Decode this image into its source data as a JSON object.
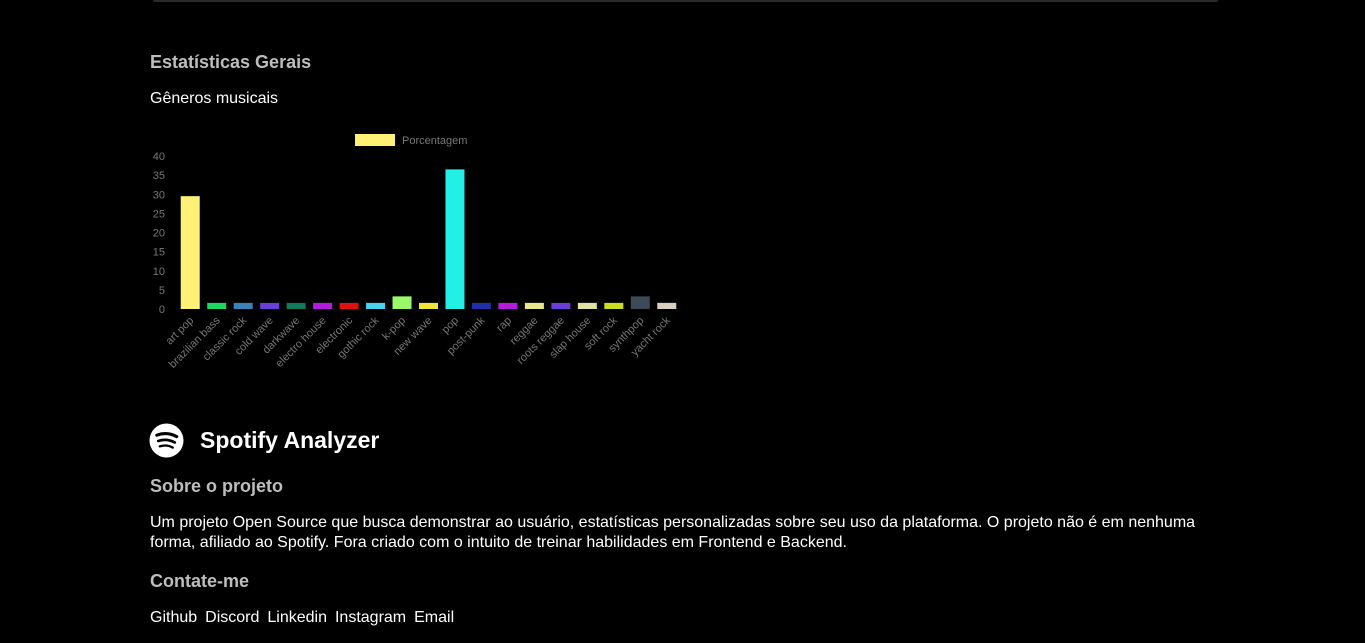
{
  "stats": {
    "title": "Estatísticas Gerais",
    "chart_subtitle": "Gêneros musicais"
  },
  "chart_data": {
    "type": "bar",
    "categories": [
      "art pop",
      "brazilian bass",
      "classic rock",
      "cold wave",
      "darkwave",
      "electro house",
      "electronic",
      "gothic rock",
      "k-pop",
      "new wave",
      "pop",
      "post-punk",
      "rap",
      "reggae",
      "roots reggae",
      "slap house",
      "soft rock",
      "synthpop",
      "yacht rock"
    ],
    "series": [
      {
        "name": "Porcentagem",
        "values": [
          29.5,
          1.6,
          1.6,
          1.6,
          1.6,
          1.6,
          1.6,
          1.6,
          3.3,
          1.6,
          36.5,
          1.6,
          1.6,
          1.6,
          1.6,
          1.6,
          1.6,
          3.3,
          1.6
        ],
        "colors": [
          "#fff176",
          "#1ed760",
          "#3b82b8",
          "#6a3fd9",
          "#0f7a5a",
          "#b61be0",
          "#e01010",
          "#49d2f0",
          "#9af86a",
          "#f0e43a",
          "#22f0e6",
          "#1f2fa8",
          "#b61be0",
          "#e8e88a",
          "#6a3fd9",
          "#dfe2a0",
          "#c8e020",
          "#3b4a56",
          "#d8cfbe"
        ]
      }
    ],
    "title": "",
    "xlabel": "",
    "ylabel": "",
    "ylim": [
      0,
      40
    ],
    "yticks": [
      0,
      5,
      10,
      15,
      20,
      25,
      30,
      35,
      40
    ],
    "grid": false,
    "legend": "top-center"
  },
  "brand": {
    "name": "Spotify Analyzer",
    "logo_icon": "spotify-logo-icon"
  },
  "about": {
    "title": "Sobre o projeto",
    "text": "Um projeto Open Source que busca demonstrar ao usuário, estatísticas personalizadas sobre seu uso da plataforma. O projeto não é em nenhuma forma, afiliado ao Spotify. Fora criado com o intuito de treinar habilidades em Frontend e Backend."
  },
  "contact": {
    "title": "Contate-me",
    "links": [
      "Github",
      "Discord",
      "Linkedin",
      "Instagram",
      "Email"
    ]
  }
}
